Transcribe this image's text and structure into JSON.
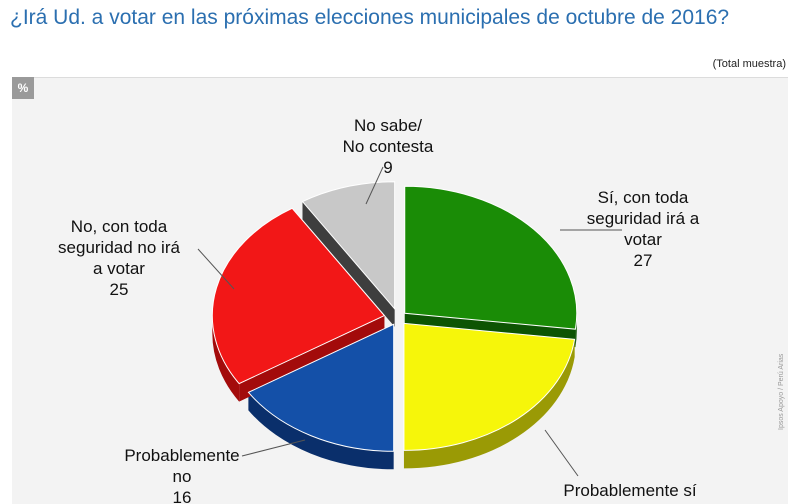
{
  "header": {
    "title": "¿Irá Ud. a votar en las próximas elecciones municipales de octubre de 2016?",
    "sample_note": "(Total muestra)",
    "percent_badge": "%",
    "credit": "Ipsos Apoyo / Perú Arias"
  },
  "chart_data": {
    "type": "pie",
    "title": "",
    "unit": "%",
    "slices": [
      {
        "label_lines": [
          "Sí, con toda",
          "seguridad irá a",
          "votar"
        ],
        "value": 27,
        "color": "#1a8c06",
        "side_color": "#0d5403"
      },
      {
        "label_lines": [
          "Probablemente sí"
        ],
        "value": 23,
        "color": "#f6f60a",
        "side_color": "#9a9a05"
      },
      {
        "label_lines": [
          "Probablemente",
          "no"
        ],
        "value": 16,
        "color": "#1450a8",
        "side_color": "#0a2f6b"
      },
      {
        "label_lines": [
          "No, con toda",
          "seguridad no irá",
          "a votar"
        ],
        "value": 25,
        "color": "#f21717",
        "side_color": "#a30b0b"
      },
      {
        "label_lines": [
          "No sabe/",
          "No contesta"
        ],
        "value": 9,
        "color": "#c8c8c8",
        "side_color": "#3e3e3e"
      }
    ]
  }
}
